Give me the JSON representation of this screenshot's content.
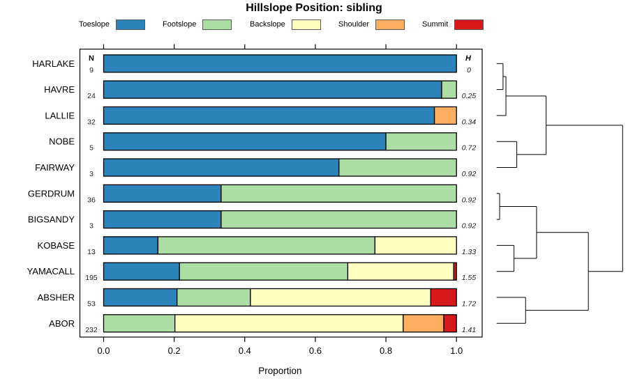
{
  "title": "Hillslope Position: sibling",
  "legend": [
    {
      "label": "Toeslope",
      "color": "#2B83BA"
    },
    {
      "label": "Footslope",
      "color": "#ABDDA4"
    },
    {
      "label": "Backslope",
      "color": "#FFFFBF"
    },
    {
      "label": "Shoulder",
      "color": "#FDAE61"
    },
    {
      "label": "Summit",
      "color": "#D7191C"
    }
  ],
  "columns": {
    "n_header": "N",
    "h_header": "H"
  },
  "axis": {
    "label": "Proportion",
    "tick_labels": [
      "0.0",
      "0.2",
      "0.4",
      "0.6",
      "0.8",
      "1.0"
    ],
    "min": 0,
    "max": 1
  },
  "chart_data": {
    "type": "bar",
    "orientation": "horizontal",
    "stacked": true,
    "title": "Hillslope Position: sibling",
    "xlabel": "Proportion",
    "xlim": [
      0,
      1
    ],
    "categories": [
      "Toeslope",
      "Footslope",
      "Backslope",
      "Shoulder",
      "Summit"
    ],
    "colors": {
      "Toeslope": "#2B83BA",
      "Footslope": "#ABDDA4",
      "Backslope": "#FFFFBF",
      "Shoulder": "#FDAE61",
      "Summit": "#D7191C"
    },
    "rows": [
      {
        "name": "HARLAKE",
        "n": "9",
        "h": "0",
        "segments": [
          [
            "Toeslope",
            1.0
          ]
        ]
      },
      {
        "name": "HAVRE",
        "n": "24",
        "h": "0.25",
        "segments": [
          [
            "Toeslope",
            0.958
          ],
          [
            "Footslope",
            0.042
          ]
        ]
      },
      {
        "name": "LALLIE",
        "n": "32",
        "h": "0.34",
        "segments": [
          [
            "Toeslope",
            0.9375
          ],
          [
            "Shoulder",
            0.0625
          ]
        ]
      },
      {
        "name": "NOBE",
        "n": "5",
        "h": "0.72",
        "segments": [
          [
            "Toeslope",
            0.8
          ],
          [
            "Footslope",
            0.2
          ]
        ]
      },
      {
        "name": "FAIRWAY",
        "n": "3",
        "h": "0.92",
        "segments": [
          [
            "Toeslope",
            0.667
          ],
          [
            "Footslope",
            0.333
          ]
        ]
      },
      {
        "name": "GERDRUM",
        "n": "36",
        "h": "0.92",
        "segments": [
          [
            "Toeslope",
            0.333
          ],
          [
            "Footslope",
            0.667
          ]
        ]
      },
      {
        "name": "BIGSANDY",
        "n": "3",
        "h": "0.92",
        "segments": [
          [
            "Toeslope",
            0.333
          ],
          [
            "Footslope",
            0.667
          ]
        ]
      },
      {
        "name": "KOBASE",
        "n": "13",
        "h": "1.33",
        "segments": [
          [
            "Toeslope",
            0.154
          ],
          [
            "Footslope",
            0.615
          ],
          [
            "Backslope",
            0.231
          ]
        ]
      },
      {
        "name": "YAMACALL",
        "n": "195",
        "h": "1.55",
        "segments": [
          [
            "Toeslope",
            0.215
          ],
          [
            "Footslope",
            0.477
          ],
          [
            "Backslope",
            0.3
          ],
          [
            "Summit",
            0.008
          ]
        ]
      },
      {
        "name": "ABSHER",
        "n": "53",
        "h": "1.72",
        "segments": [
          [
            "Toeslope",
            0.208
          ],
          [
            "Footslope",
            0.208
          ],
          [
            "Backslope",
            0.511
          ],
          [
            "Summit",
            0.073
          ]
        ]
      },
      {
        "name": "ABOR",
        "n": "232",
        "h": "1.41",
        "segments": [
          [
            "Footslope",
            0.202
          ],
          [
            "Backslope",
            0.647
          ],
          [
            "Shoulder",
            0.115
          ],
          [
            "Summit",
            0.036
          ]
        ]
      }
    ],
    "dendrogram": {
      "merges": [
        [
          "HARLAKE",
          "HAVRE",
          0.051
        ],
        [
          "m0",
          "LALLIE",
          0.074
        ],
        [
          "NOBE",
          "FAIRWAY",
          0.16
        ],
        [
          "m1",
          "m2",
          0.393
        ],
        [
          "GERDRUM",
          "BIGSANDY",
          0.024
        ],
        [
          "KOBASE",
          "YAMACALL",
          0.138
        ],
        [
          "m4",
          "m5",
          0.317
        ],
        [
          "ABSHER",
          "ABOR",
          0.23
        ],
        [
          "m6",
          "m7",
          0.728
        ],
        [
          "m3",
          "m8",
          1.0
        ]
      ]
    }
  }
}
